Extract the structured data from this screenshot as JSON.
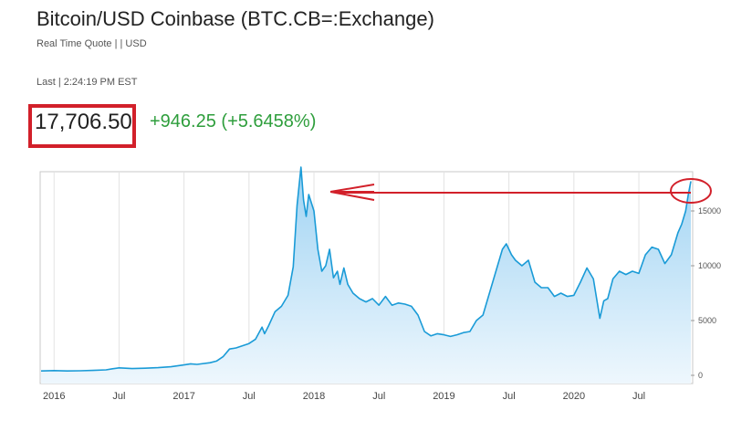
{
  "header": {
    "title": "Bitcoin/USD Coinbase (BTC.CB=:Exchange)",
    "subtitle": "Real Time Quote | | USD",
    "last": "Last | 2:24:19 PM EST",
    "price": "17,706.50",
    "change": "+946.25 (+5.6458%)"
  },
  "colors": {
    "line": "#1a9bd7",
    "area_top": "#9fd3f3",
    "area_bottom": "#eef7fd",
    "annotation": "#d2202a",
    "change": "#2e9e3c"
  },
  "chart_data": {
    "type": "area",
    "title": "",
    "xlabel": "",
    "ylabel": "",
    "x_tick_labels": [
      "2016",
      "Jul",
      "2017",
      "Jul",
      "2018",
      "Jul",
      "2019",
      "Jul",
      "2020",
      "Jul"
    ],
    "y_ticks": [
      0,
      5000,
      10000,
      15000
    ],
    "y_tick_labels": [
      "0",
      "5000",
      "10000",
      "15000"
    ],
    "ylim": [
      0,
      18500
    ],
    "x_range_years": [
      2015.9,
      2020.9
    ],
    "grid": "vertical",
    "series": [
      {
        "x": [
          2015.9,
          2016.0,
          2016.1,
          2016.2,
          2016.3,
          2016.4,
          2016.45,
          2016.5,
          2016.55,
          2016.6,
          2016.7,
          2016.8,
          2016.9,
          2017.0,
          2017.05,
          2017.1,
          2017.2,
          2017.25,
          2017.3,
          2017.35,
          2017.4,
          2017.45,
          2017.5,
          2017.55,
          2017.6,
          2017.62,
          2017.65,
          2017.7,
          2017.75,
          2017.8,
          2017.84,
          2017.87,
          2017.9,
          2017.92,
          2017.94,
          2017.96,
          2018.0,
          2018.03,
          2018.06,
          2018.09,
          2018.12,
          2018.15,
          2018.18,
          2018.2,
          2018.23,
          2018.26,
          2018.3,
          2018.35,
          2018.4,
          2018.45,
          2018.5,
          2018.55,
          2018.6,
          2018.65,
          2018.7,
          2018.75,
          2018.8,
          2018.85,
          2018.9,
          2018.95,
          2019.0,
          2019.05,
          2019.1,
          2019.15,
          2019.2,
          2019.25,
          2019.3,
          2019.35,
          2019.4,
          2019.45,
          2019.48,
          2019.52,
          2019.55,
          2019.6,
          2019.65,
          2019.7,
          2019.75,
          2019.8,
          2019.85,
          2019.9,
          2019.95,
          2020.0,
          2020.05,
          2020.1,
          2020.15,
          2020.2,
          2020.23,
          2020.26,
          2020.3,
          2020.35,
          2020.4,
          2020.45,
          2020.5,
          2020.55,
          2020.6,
          2020.65,
          2020.7,
          2020.75,
          2020.8,
          2020.83,
          2020.86,
          2020.88,
          2020.9
        ],
        "values": [
          400,
          430,
          400,
          420,
          450,
          500,
          600,
          680,
          650,
          620,
          650,
          700,
          780,
          950,
          1050,
          1000,
          1150,
          1300,
          1700,
          2400,
          2500,
          2700,
          2900,
          3300,
          4400,
          3800,
          4500,
          5800,
          6300,
          7300,
          9900,
          15500,
          19000,
          16000,
          14500,
          16500,
          15000,
          11500,
          9500,
          10000,
          11500,
          8900,
          9500,
          8300,
          9800,
          8300,
          7500,
          7000,
          6700,
          7000,
          6400,
          7200,
          6400,
          6600,
          6500,
          6300,
          5500,
          4000,
          3600,
          3800,
          3700,
          3550,
          3700,
          3900,
          4000,
          5000,
          5500,
          7500,
          9500,
          11500,
          12000,
          11000,
          10500,
          10000,
          10500,
          8500,
          8000,
          8000,
          7200,
          7500,
          7200,
          7300,
          8500,
          9800,
          8800,
          5200,
          6800,
          7000,
          8800,
          9500,
          9200,
          9500,
          9300,
          11000,
          11700,
          11500,
          10200,
          11000,
          13000,
          13800,
          15000,
          16500,
          17706
        ]
      }
    ]
  }
}
